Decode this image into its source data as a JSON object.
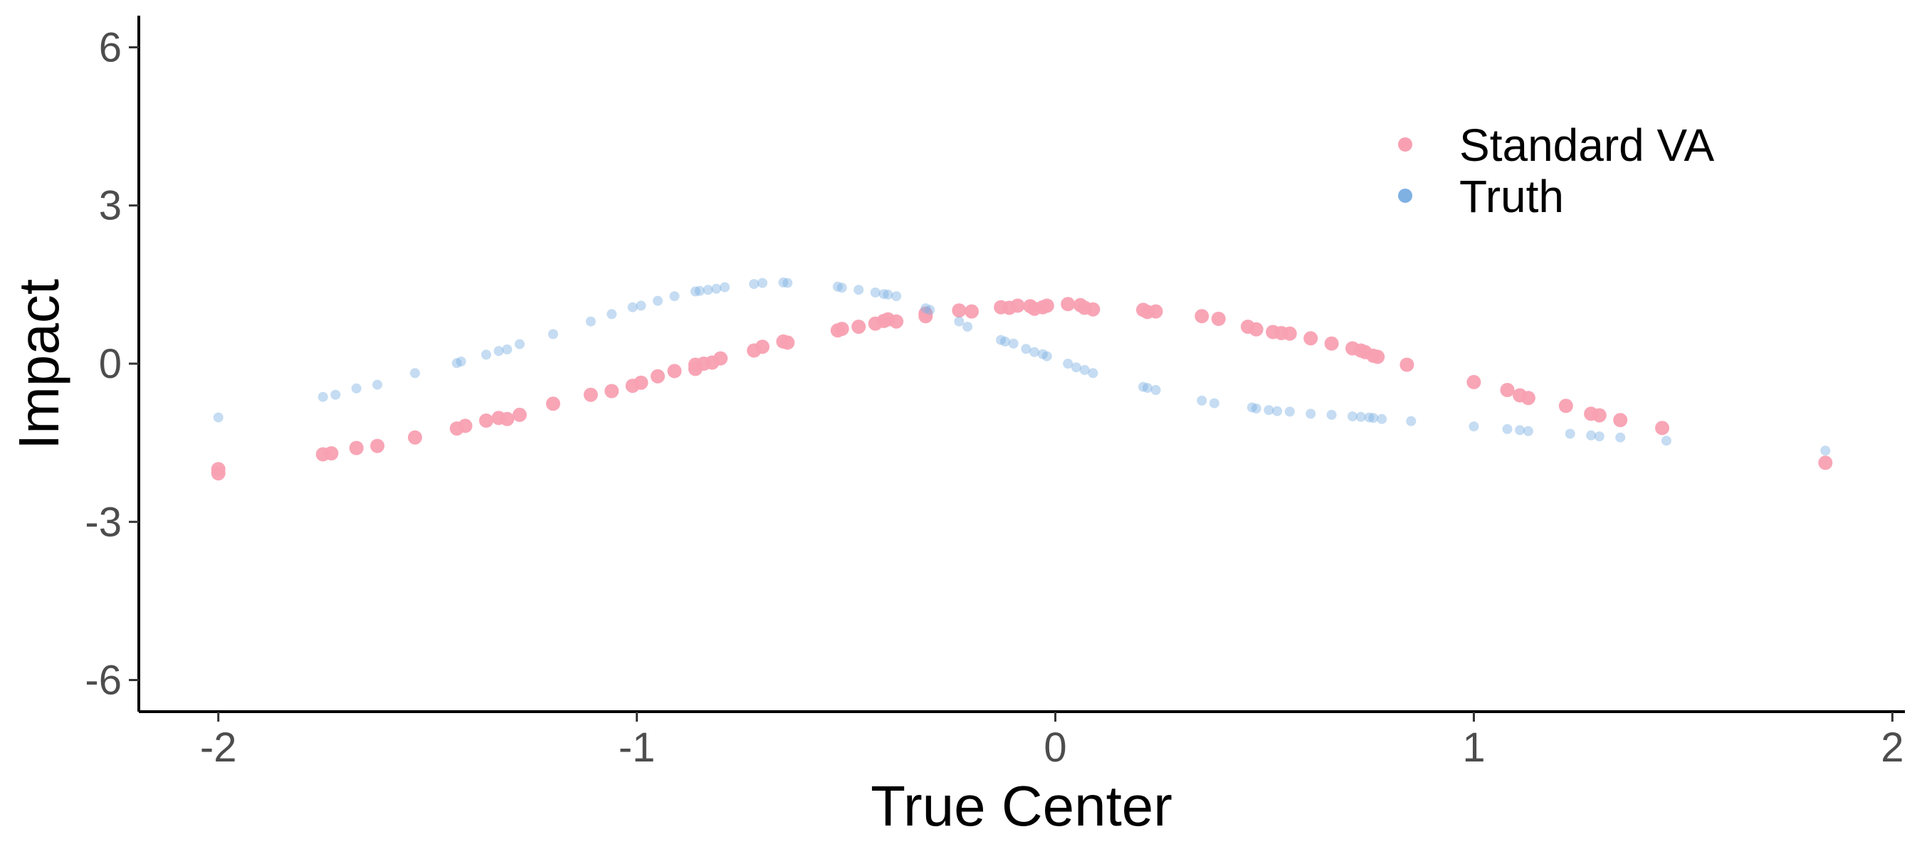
{
  "chart_data": {
    "type": "scatter",
    "title": "",
    "xlabel": "True Center",
    "ylabel": "Impact",
    "xlim": [
      -2.19,
      2.03
    ],
    "ylim": [
      -6.6,
      6.6
    ],
    "xticks": [
      -2,
      -1,
      0,
      1,
      2
    ],
    "xtick_labels": [
      "-2",
      "-1",
      "0",
      "1",
      "2"
    ],
    "yticks": [
      -6,
      -3,
      0,
      3,
      6
    ],
    "ytick_labels": [
      "-6",
      "-3",
      "0",
      "3",
      "6"
    ],
    "grid": false,
    "legend_position": "top-right",
    "series": [
      {
        "name": "Standard VA",
        "color": "#f8a0b2",
        "points": [
          [
            -2.0,
            -2.0
          ],
          [
            -2.0,
            -2.08
          ],
          [
            -1.75,
            -1.72
          ],
          [
            -1.73,
            -1.7
          ],
          [
            -1.67,
            -1.6
          ],
          [
            -1.62,
            -1.56
          ],
          [
            -1.53,
            -1.4
          ],
          [
            -1.43,
            -1.23
          ],
          [
            -1.41,
            -1.18
          ],
          [
            -1.36,
            -1.08
          ],
          [
            -1.33,
            -1.03
          ],
          [
            -1.31,
            -1.05
          ],
          [
            -1.28,
            -0.97
          ],
          [
            -1.2,
            -0.76
          ],
          [
            -1.11,
            -0.59
          ],
          [
            -1.06,
            -0.52
          ],
          [
            -1.01,
            -0.42
          ],
          [
            -0.99,
            -0.36
          ],
          [
            -0.95,
            -0.24
          ],
          [
            -0.91,
            -0.14
          ],
          [
            -0.86,
            -0.02
          ],
          [
            -0.86,
            -0.1
          ],
          [
            -0.84,
            0.0
          ],
          [
            -0.82,
            0.02
          ],
          [
            -0.8,
            0.1
          ],
          [
            -0.72,
            0.25
          ],
          [
            -0.7,
            0.32
          ],
          [
            -0.65,
            0.42
          ],
          [
            -0.64,
            0.4
          ],
          [
            -0.52,
            0.63
          ],
          [
            -0.51,
            0.66
          ],
          [
            -0.47,
            0.7
          ],
          [
            -0.43,
            0.76
          ],
          [
            -0.41,
            0.81
          ],
          [
            -0.4,
            0.84
          ],
          [
            -0.38,
            0.8
          ],
          [
            -0.31,
            0.9
          ],
          [
            -0.31,
            0.95
          ],
          [
            -0.23,
            1.01
          ],
          [
            -0.2,
            0.99
          ],
          [
            -0.13,
            1.07
          ],
          [
            -0.11,
            1.06
          ],
          [
            -0.09,
            1.1
          ],
          [
            -0.06,
            1.09
          ],
          [
            -0.05,
            1.04
          ],
          [
            -0.03,
            1.07
          ],
          [
            -0.02,
            1.1
          ],
          [
            0.03,
            1.13
          ],
          [
            0.06,
            1.11
          ],
          [
            0.07,
            1.06
          ],
          [
            0.09,
            1.03
          ],
          [
            0.21,
            1.02
          ],
          [
            0.22,
            0.98
          ],
          [
            0.24,
            0.99
          ],
          [
            0.35,
            0.9
          ],
          [
            0.39,
            0.85
          ],
          [
            0.46,
            0.7
          ],
          [
            0.48,
            0.65
          ],
          [
            0.52,
            0.6
          ],
          [
            0.54,
            0.58
          ],
          [
            0.56,
            0.57
          ],
          [
            0.61,
            0.48
          ],
          [
            0.66,
            0.38
          ],
          [
            0.71,
            0.29
          ],
          [
            0.73,
            0.25
          ],
          [
            0.74,
            0.22
          ],
          [
            0.76,
            0.15
          ],
          [
            0.77,
            0.13
          ],
          [
            0.84,
            -0.02
          ],
          [
            1.0,
            -0.35
          ],
          [
            1.08,
            -0.5
          ],
          [
            1.11,
            -0.6
          ],
          [
            1.13,
            -0.65
          ],
          [
            1.22,
            -0.8
          ],
          [
            1.28,
            -0.95
          ],
          [
            1.3,
            -0.98
          ],
          [
            1.35,
            -1.07
          ],
          [
            1.45,
            -1.22
          ],
          [
            1.84,
            -1.88
          ]
        ]
      },
      {
        "name": "Truth",
        "color": "#7fb1e3",
        "points": [
          [
            -2.0,
            -1.02
          ],
          [
            -1.75,
            -0.63
          ],
          [
            -1.72,
            -0.59
          ],
          [
            -1.67,
            -0.47
          ],
          [
            -1.62,
            -0.4
          ],
          [
            -1.53,
            -0.18
          ],
          [
            -1.43,
            0.01
          ],
          [
            -1.42,
            0.04
          ],
          [
            -1.36,
            0.17
          ],
          [
            -1.33,
            0.24
          ],
          [
            -1.31,
            0.27
          ],
          [
            -1.28,
            0.37
          ],
          [
            -1.2,
            0.56
          ],
          [
            -1.11,
            0.8
          ],
          [
            -1.06,
            0.94
          ],
          [
            -1.01,
            1.07
          ],
          [
            -0.99,
            1.1
          ],
          [
            -0.95,
            1.19
          ],
          [
            -0.91,
            1.28
          ],
          [
            -0.86,
            1.37
          ],
          [
            -0.85,
            1.38
          ],
          [
            -0.83,
            1.4
          ],
          [
            -0.81,
            1.42
          ],
          [
            -0.79,
            1.45
          ],
          [
            -0.72,
            1.51
          ],
          [
            -0.7,
            1.53
          ],
          [
            -0.65,
            1.54
          ],
          [
            -0.64,
            1.53
          ],
          [
            -0.52,
            1.46
          ],
          [
            -0.51,
            1.44
          ],
          [
            -0.47,
            1.4
          ],
          [
            -0.43,
            1.35
          ],
          [
            -0.41,
            1.32
          ],
          [
            -0.4,
            1.31
          ],
          [
            -0.38,
            1.28
          ],
          [
            -0.31,
            1.05
          ],
          [
            -0.3,
            1.02
          ],
          [
            -0.23,
            0.8
          ],
          [
            -0.21,
            0.7
          ],
          [
            -0.13,
            0.45
          ],
          [
            -0.12,
            0.42
          ],
          [
            -0.1,
            0.38
          ],
          [
            -0.07,
            0.28
          ],
          [
            -0.05,
            0.22
          ],
          [
            -0.03,
            0.18
          ],
          [
            -0.02,
            0.14
          ],
          [
            0.03,
            0.0
          ],
          [
            0.05,
            -0.07
          ],
          [
            0.07,
            -0.12
          ],
          [
            0.09,
            -0.18
          ],
          [
            0.21,
            -0.44
          ],
          [
            0.22,
            -0.46
          ],
          [
            0.24,
            -0.5
          ],
          [
            0.35,
            -0.7
          ],
          [
            0.38,
            -0.75
          ],
          [
            0.47,
            -0.83
          ],
          [
            0.48,
            -0.85
          ],
          [
            0.51,
            -0.88
          ],
          [
            0.53,
            -0.9
          ],
          [
            0.56,
            -0.91
          ],
          [
            0.61,
            -0.95
          ],
          [
            0.66,
            -0.97
          ],
          [
            0.71,
            -1.0
          ],
          [
            0.73,
            -1.01
          ],
          [
            0.75,
            -1.02
          ],
          [
            0.76,
            -1.03
          ],
          [
            0.78,
            -1.05
          ],
          [
            0.85,
            -1.09
          ],
          [
            1.0,
            -1.19
          ],
          [
            1.08,
            -1.24
          ],
          [
            1.11,
            -1.26
          ],
          [
            1.13,
            -1.28
          ],
          [
            1.23,
            -1.33
          ],
          [
            1.28,
            -1.36
          ],
          [
            1.3,
            -1.38
          ],
          [
            1.35,
            -1.4
          ],
          [
            1.46,
            -1.46
          ],
          [
            1.84,
            -1.65
          ]
        ]
      }
    ]
  }
}
